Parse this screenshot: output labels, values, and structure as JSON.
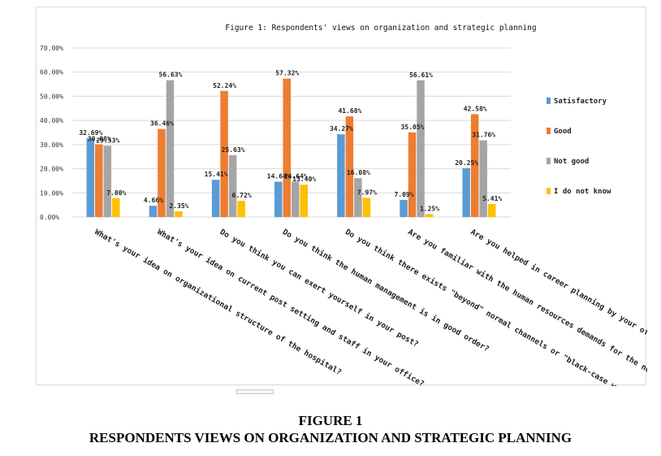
{
  "chart_data": {
    "type": "bar",
    "title": "Figure 1: Respondents' views on organization and strategic planning",
    "categories": [
      "What's your idea on organizational structure of the hospital?",
      "What's your idea on current post setting and staff in your office?",
      "Do you think you can exert yourself in your post?",
      "Do you think the human management is in good order?",
      "Do you think there exists \"beyond\" normal channels or \"black-case work\"?...",
      "Are you familiar with the human resources demands for the next two years in your office...",
      "Are you helped in career planning by your office?"
    ],
    "series": [
      {
        "name": "Satisfactory",
        "values": [
          32.69,
          4.66,
          15.41,
          14.64,
          34.27,
          7.09,
          20.25
        ],
        "labels": [
          "32.69%",
          "4.66%",
          "15.41%",
          "14.64%",
          "34.27%",
          "7.09%",
          "20.25%"
        ]
      },
      {
        "name": "Good",
        "values": [
          30.08,
          36.46,
          52.24,
          57.32,
          41.68,
          35.05,
          42.58
        ],
        "labels": [
          "30.08%",
          "36.46%",
          "52.24%",
          "57.32%",
          "41.68%",
          "35.05%",
          "42.58%"
        ]
      },
      {
        "name": "Not good",
        "values": [
          29.53,
          56.63,
          25.63,
          14.64,
          16.08,
          56.61,
          31.76
        ],
        "labels": [
          "29.53%",
          "56.63%",
          "25.63%",
          "14.64%",
          "16.08%",
          "56.61%",
          "31.76%"
        ]
      },
      {
        "name": "I do not know",
        "values": [
          7.8,
          2.35,
          6.72,
          13.4,
          7.97,
          1.25,
          5.41
        ],
        "labels": [
          "7.80%",
          "2.35%",
          "6.72%",
          "13.40%",
          "7.97%",
          "1.25%",
          "5.41%"
        ]
      }
    ],
    "colors": [
      "#5b9bd5",
      "#ed7d31",
      "#a5a5a5",
      "#ffc000"
    ],
    "ylim": [
      0,
      70
    ],
    "yticks": [
      "0.00%",
      "10.00%",
      "20.00%",
      "30.00%",
      "40.00%",
      "50.00%",
      "60.00%",
      "70.00%"
    ],
    "grid": true,
    "legend_position": "right",
    "xlabel": "",
    "ylabel": ""
  },
  "caption": {
    "figure": "FIGURE 1",
    "title": "RESPONDENTS VIEWS ON ORGANIZATION AND STRATEGIC PLANNING"
  }
}
